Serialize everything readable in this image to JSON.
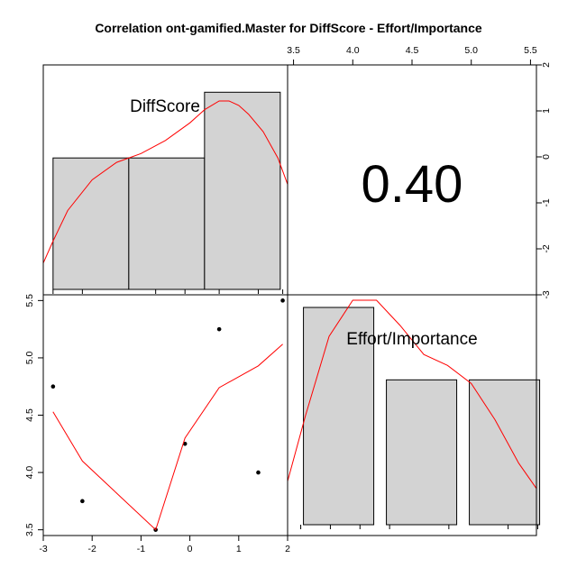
{
  "title": "Correlation ont-gamified.Master for DiffScore - Effort/Importance",
  "chart_data": {
    "type": "scatter",
    "title": "Correlation ont-gamified.Master for DiffScore - Effort/Importance",
    "variables": [
      "DiffScore",
      "Effort/Importance"
    ],
    "correlation_label": "0.40",
    "correlation": 0.4,
    "points": {
      "x": [
        -2.8,
        -2.2,
        -0.7,
        -0.1,
        0.6,
        1.4,
        1.9
      ],
      "y": [
        4.75,
        3.75,
        3.5,
        4.25,
        5.25,
        4.0,
        5.5
      ]
    },
    "smoother": {
      "x": [
        -2.8,
        -2.2,
        -0.7,
        -0.1,
        0.6,
        1.4,
        1.9
      ],
      "y": [
        4.53,
        4.1,
        3.5,
        4.3,
        4.74,
        4.93,
        5.12
      ]
    },
    "xlim": [
      -3.0,
      2.0
    ],
    "ylim": [
      3.45,
      5.55
    ],
    "x_ticks": [
      "-3",
      "-2",
      "-1",
      "0",
      "1",
      "2"
    ],
    "y_ticks": [
      "3.5",
      "4.0",
      "4.5",
      "5.0",
      "5.5"
    ],
    "top_axis_ticks": [
      "3.5",
      "4.0",
      "4.5",
      "5.0",
      "5.5"
    ],
    "right_axis_ticks": [
      "2",
      "1",
      "0",
      "-1",
      "-2",
      "-3"
    ],
    "hist_diffscore": {
      "edges": [
        -2.8,
        -1.25,
        0.3,
        1.85
      ],
      "heights": [
        0.3,
        0.3,
        0.45
      ],
      "hmax": 0.5,
      "density_x": [
        -3.0,
        -2.8,
        -2.5,
        -2.0,
        -1.5,
        -1.0,
        -0.5,
        0.0,
        0.3,
        0.6,
        0.8,
        1.0,
        1.2,
        1.5,
        1.8,
        2.0
      ],
      "density_y": [
        0.06,
        0.11,
        0.18,
        0.25,
        0.29,
        0.31,
        0.34,
        0.38,
        0.41,
        0.43,
        0.43,
        0.42,
        0.4,
        0.36,
        0.3,
        0.24
      ]
    },
    "hist_effort": {
      "edges": [
        3.5,
        4.2,
        4.9,
        5.6
      ],
      "heights": [
        0.6,
        0.4,
        0.4
      ],
      "hmax": 0.6,
      "density_x": [
        3.45,
        3.6,
        3.8,
        4.0,
        4.2,
        4.4,
        4.6,
        4.8,
        5.0,
        5.2,
        5.4,
        5.55
      ],
      "density_y": [
        0.12,
        0.3,
        0.52,
        0.62,
        0.62,
        0.55,
        0.47,
        0.44,
        0.39,
        0.29,
        0.17,
        0.1
      ]
    }
  }
}
